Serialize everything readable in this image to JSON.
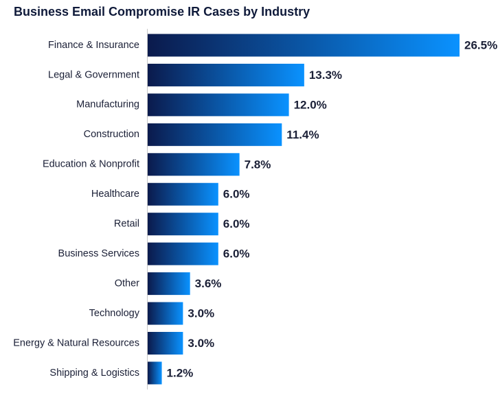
{
  "chart_data": {
    "type": "hbar",
    "title": "Business Email Compromise IR Cases by Industry",
    "categories": [
      "Finance & Insurance",
      "Legal & Government",
      "Manufacturing",
      "Construction",
      "Education & Nonprofit",
      "Healthcare",
      "Retail",
      "Business Services",
      "Other",
      "Technology",
      "Energy & Natural Resources",
      "Shipping & Logistics"
    ],
    "values": [
      26.5,
      13.3,
      12.0,
      11.4,
      7.8,
      6.0,
      6.0,
      6.0,
      3.6,
      3.0,
      3.0,
      1.2
    ],
    "value_labels": [
      "26.5%",
      "13.3%",
      "12.0%",
      "11.4%",
      "7.8%",
      "6.0%",
      "6.0%",
      "6.0%",
      "3.6%",
      "3.0%",
      "3.0%",
      "1.2%"
    ],
    "gradient": [
      "#0b1a4c",
      "#0a92ff"
    ]
  }
}
